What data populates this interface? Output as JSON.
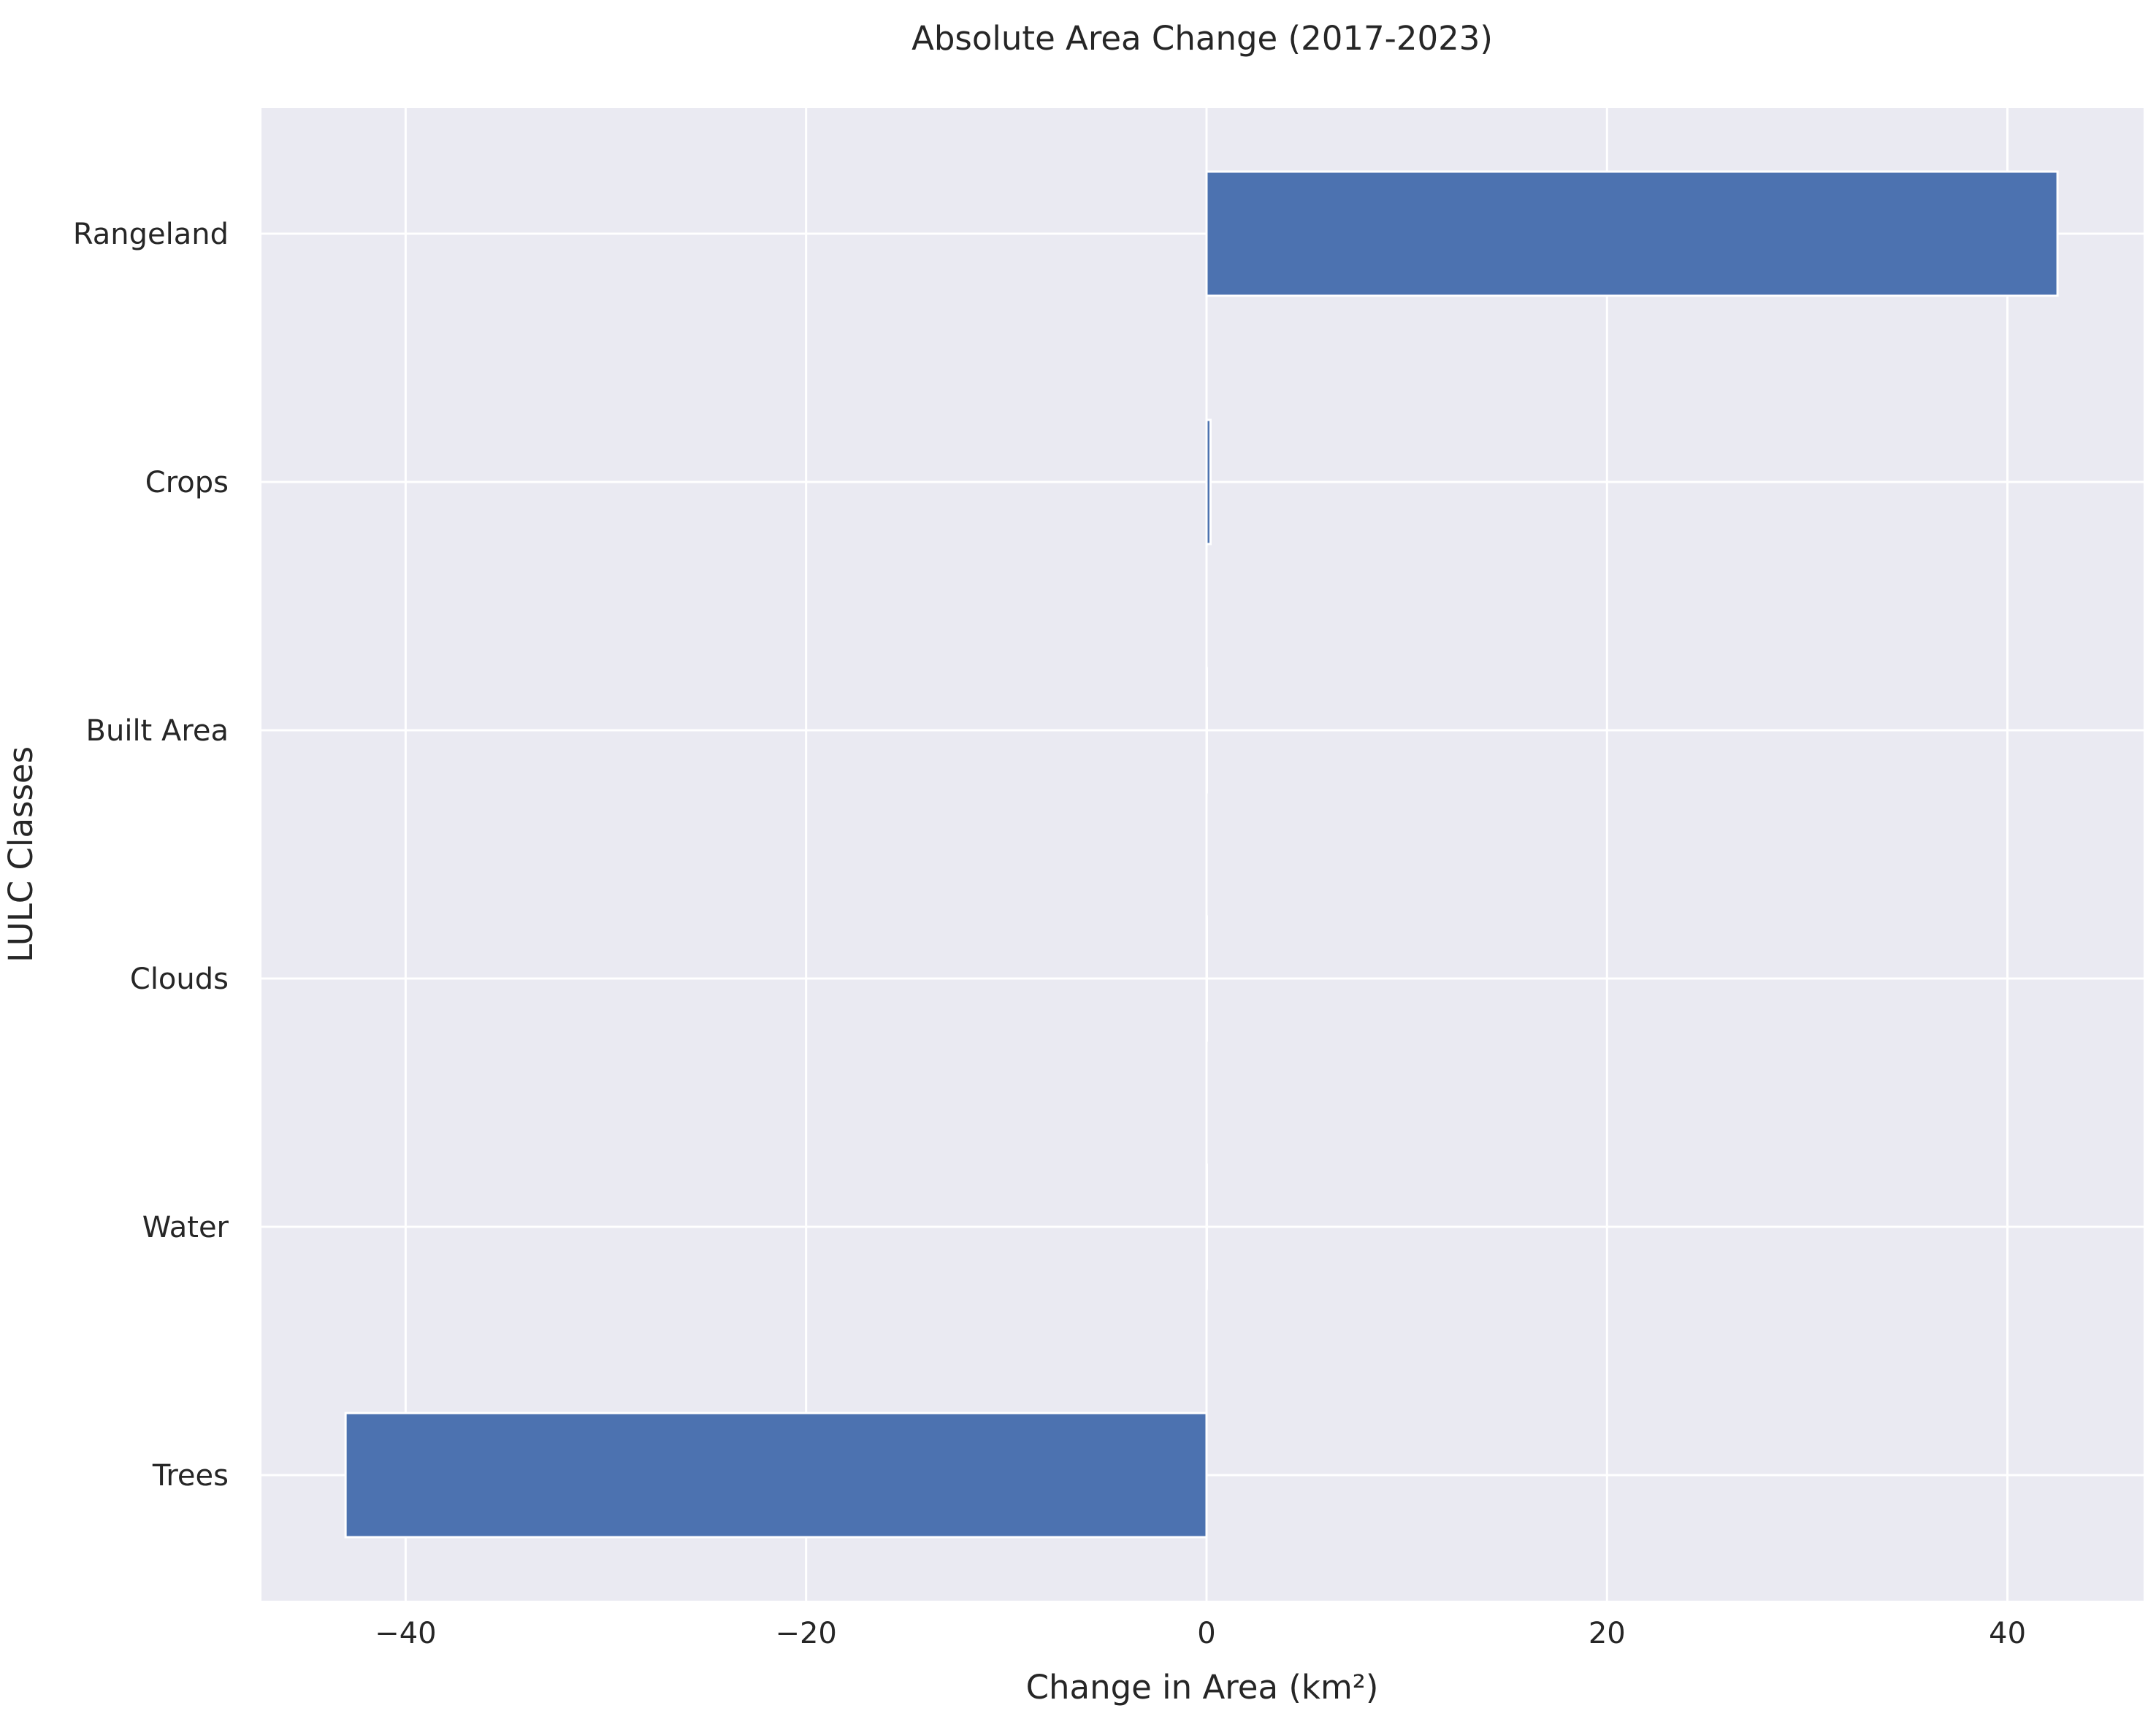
{
  "chart_data": {
    "type": "bar",
    "orientation": "horizontal",
    "title": "Absolute Area Change (2017-2023)",
    "xlabel": "Change in Area (km²)",
    "ylabel": "LULC Classes",
    "categories": [
      "Rangeland",
      "Crops",
      "Built Area",
      "Clouds",
      "Water",
      "Trees"
    ],
    "values": [
      42.5,
      0.2,
      0.0,
      0.0,
      0.0,
      -43.0
    ],
    "xlim": [
      -47.2,
      46.8
    ],
    "xticks": [
      -40,
      -20,
      0,
      20,
      40
    ],
    "xtick_labels": [
      "−40",
      "−20",
      "0",
      "20",
      "40"
    ],
    "grid": true,
    "colors": {
      "bar": "#4c72b0",
      "plot_background": "#eaeaf2",
      "grid": "#ffffff",
      "text": "#262626"
    }
  }
}
